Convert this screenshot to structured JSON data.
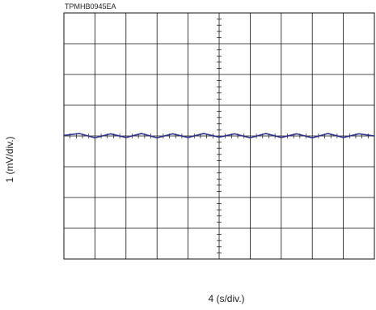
{
  "doc_code": "TPMHB0945EA",
  "chart_data": {
    "type": "line",
    "title": "",
    "xlabel": "4 (s/div.)",
    "ylabel": "1 (mV/div.)",
    "divisions": {
      "x": 10,
      "y": 8
    },
    "grid": true,
    "xlim": [
      0,
      10
    ],
    "ylim": [
      -4,
      4
    ],
    "series": [
      {
        "color": "#2b2f8f",
        "x": [
          0,
          0.5,
          1,
          1.5,
          2,
          2.5,
          3,
          3.5,
          4,
          4.5,
          5,
          5.5,
          6,
          6.5,
          7,
          7.5,
          8,
          8.5,
          9,
          9.5,
          10
        ],
        "y": [
          0.02,
          0.08,
          -0.06,
          0.07,
          -0.05,
          0.08,
          -0.06,
          0.07,
          -0.05,
          0.08,
          -0.04,
          0.07,
          -0.06,
          0.08,
          -0.05,
          0.07,
          -0.06,
          0.08,
          -0.05,
          0.07,
          0.0
        ]
      }
    ]
  }
}
